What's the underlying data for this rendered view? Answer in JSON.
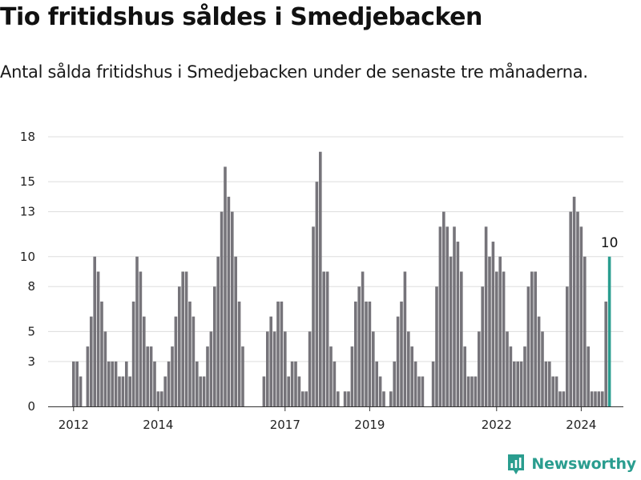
{
  "header": {
    "title": "Tio fritidshus såldes i Smedjebacken",
    "subtitle": "Antal sålda fritidshus i Smedjebacken under de senaste tre månaderna."
  },
  "brand": {
    "name": "Newsworthy",
    "icon": "newsworthy-logo-icon",
    "color": "#2a9d8f"
  },
  "chart_data": {
    "type": "bar",
    "title": "Tio fritidshus såldes i Smedjebacken",
    "subtitle": "Antal sålda fritidshus i Smedjebacken under de senaste tre månaderna.",
    "frequency": "monthly",
    "first_month": "2012-01",
    "values": [
      3,
      3,
      2,
      0,
      4,
      6,
      10,
      9,
      7,
      5,
      3,
      3,
      3,
      2,
      2,
      3,
      2,
      7,
      10,
      9,
      6,
      4,
      4,
      3,
      1,
      1,
      2,
      3,
      4,
      6,
      8,
      9,
      9,
      7,
      6,
      3,
      2,
      2,
      4,
      5,
      8,
      10,
      13,
      16,
      14,
      13,
      10,
      7,
      4,
      0,
      0,
      0,
      0,
      0,
      2,
      5,
      6,
      5,
      7,
      7,
      5,
      2,
      3,
      3,
      2,
      1,
      1,
      5,
      12,
      15,
      17,
      9,
      9,
      4,
      3,
      1,
      0,
      1,
      1,
      4,
      7,
      8,
      9,
      7,
      7,
      5,
      3,
      2,
      1,
      0,
      1,
      3,
      6,
      7,
      9,
      5,
      4,
      3,
      2,
      2,
      0,
      0,
      3,
      8,
      12,
      13,
      12,
      10,
      12,
      11,
      9,
      4,
      2,
      2,
      2,
      5,
      8,
      12,
      10,
      11,
      9,
      10,
      9,
      5,
      4,
      3,
      3,
      3,
      4,
      8,
      9,
      9,
      6,
      5,
      3,
      3,
      2,
      2,
      1,
      1,
      8,
      13,
      14,
      13,
      12,
      10,
      4,
      1,
      1,
      1,
      1,
      7,
      10
    ],
    "highlight": {
      "label": "10",
      "value": 10,
      "color": "#2a9d8f"
    },
    "bar_color": "#76747a",
    "x_ticks": [
      "2012",
      "2014",
      "2017",
      "2019",
      "2022",
      "2024"
    ],
    "y_ticks": [
      "0",
      "3",
      "5",
      "8",
      "10",
      "13",
      "15",
      "18"
    ],
    "ylim": [
      0,
      18
    ],
    "grid": "horizontal",
    "xlabel": "",
    "ylabel": ""
  }
}
